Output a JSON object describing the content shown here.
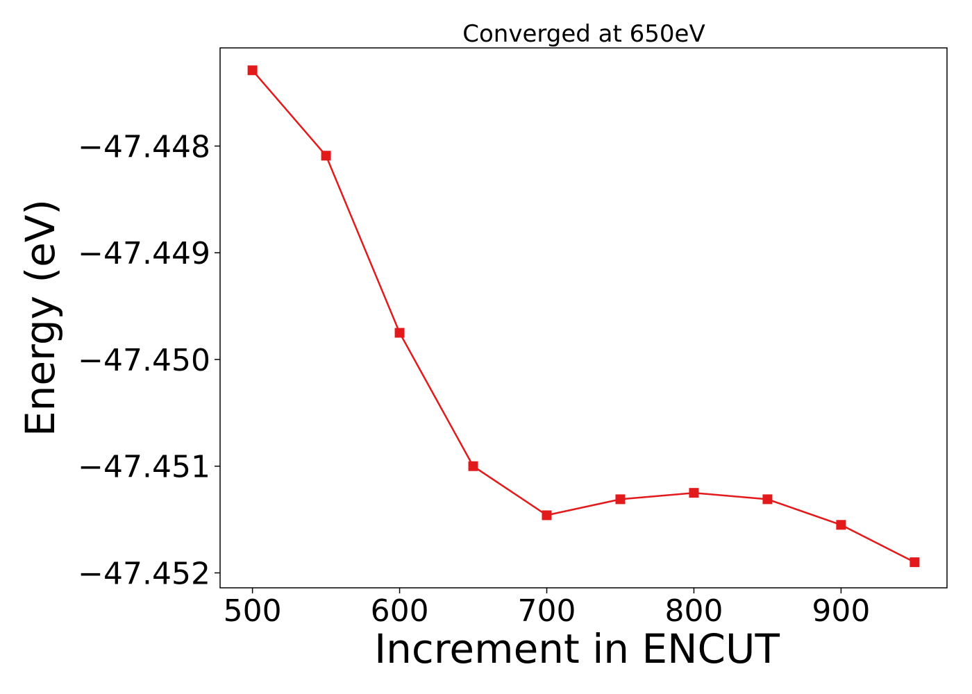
{
  "chart_data": {
    "type": "line",
    "title": "Converged at 650eV",
    "xlabel": "Increment in ENCUT",
    "ylabel": "Energy (eV)",
    "xlim": [
      478,
      972
    ],
    "ylim": [
      -47.45214,
      -47.44708
    ],
    "xticks": [
      500,
      600,
      700,
      800,
      900
    ],
    "yticks": [
      -47.448,
      -47.449,
      -47.45,
      -47.451,
      -47.452
    ],
    "ytick_labels": [
      "−47.448",
      "−47.449",
      "−47.450",
      "−47.451",
      "−47.452"
    ],
    "grid": false,
    "series": [
      {
        "color": "#e31a1c",
        "marker": "square",
        "x": [
          500,
          550,
          600,
          650,
          700,
          750,
          800,
          850,
          900,
          950
        ],
        "y": [
          -47.44729,
          -47.44809,
          -47.44975,
          -47.451,
          -47.45146,
          -47.45131,
          -47.45125,
          -47.45131,
          -47.45155,
          -47.4519
        ]
      }
    ]
  }
}
